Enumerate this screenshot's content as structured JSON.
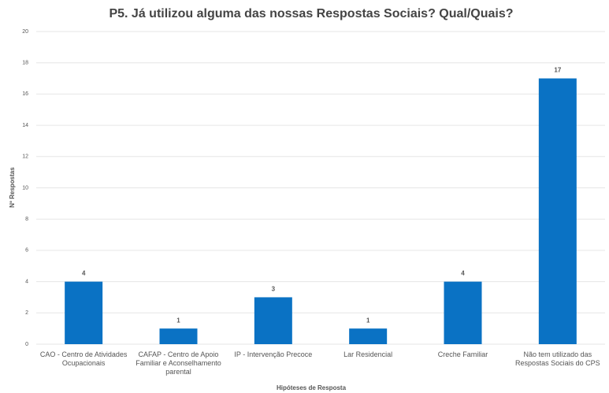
{
  "chart_data": {
    "type": "bar",
    "title": "P5. Já utilizou alguma das nossas Respostas Sociais? Qual/Quais?",
    "x_label": "Hipóteses de Resposta",
    "y_label": "Nº Respostas",
    "categories": [
      "CAO - Centro de Atividades Ocupacionais",
      "CAFAP - Centro de Apoio Familiar e Aconselhamento parental",
      "IP - Intervenção Precoce",
      "Lar Residencial",
      "Creche Familiar",
      "Não tem utilizado das Respostas Sociais do CPS"
    ],
    "values": [
      4,
      1,
      3,
      1,
      4,
      17
    ],
    "color": "#0a72c4",
    "ylim": [
      0,
      20
    ],
    "yticks": [
      0,
      2,
      4,
      6,
      8,
      10,
      12,
      14,
      16,
      18,
      20
    ],
    "grid": true
  }
}
